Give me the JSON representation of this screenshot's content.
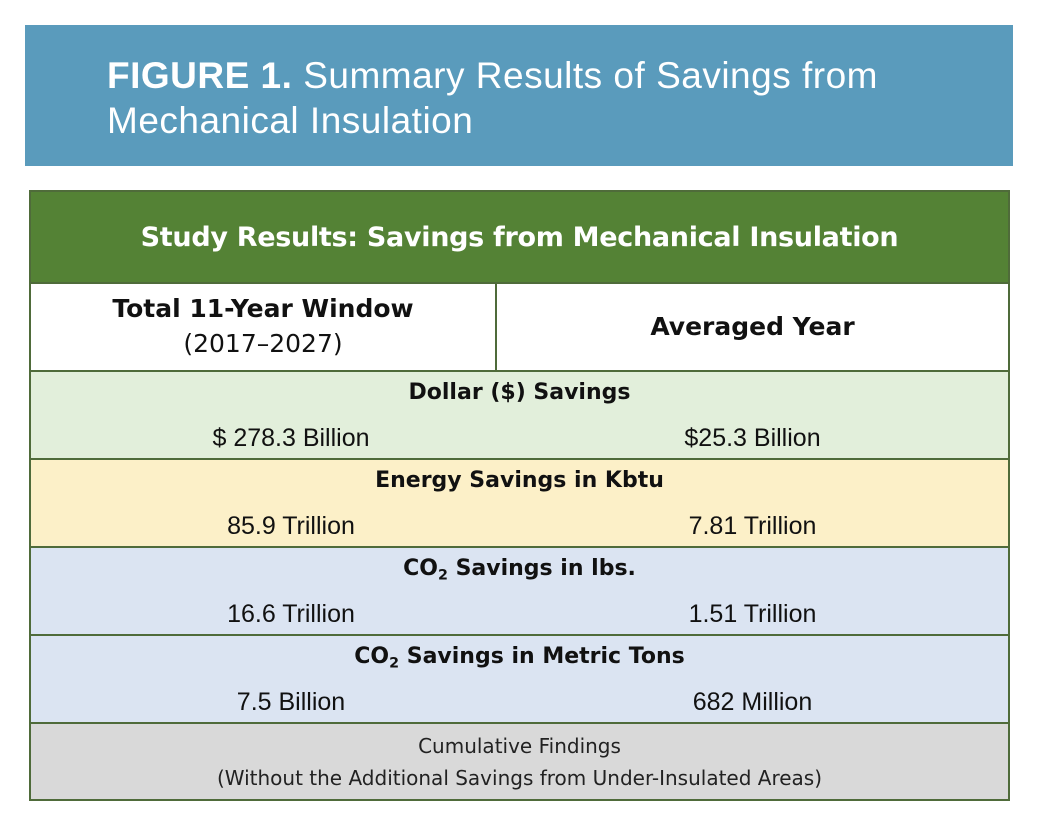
{
  "figure": {
    "label": "FIGURE 1.",
    "title": "Summary Results of Savings from Mechanical Insulation"
  },
  "table": {
    "title": "Study Results: Savings from Mechanical Insulation",
    "header": {
      "left_main": "Total 11-Year Window",
      "left_sub": "(2017–2027)",
      "right": "Averaged Year"
    },
    "rows": [
      {
        "metric": "Dollar ($) Savings",
        "total": "$ 278.3 Billion",
        "averaged": "$25.3 Billion"
      },
      {
        "metric": "Energy Savings in Kbtu",
        "total": "85.9 Trillion",
        "averaged": "7.81 Trillion"
      },
      {
        "metric_prefix": "CO",
        "metric_sub": "2",
        "metric_suffix": " Savings in lbs.",
        "total": "16.6 Trillion",
        "averaged": "1.51 Trillion"
      },
      {
        "metric_prefix": "CO",
        "metric_sub": "2",
        "metric_suffix": " Savings in Metric Tons",
        "total": "7.5 Billion",
        "averaged": "682 Million"
      }
    ],
    "footer": {
      "line1": "Cumulative Findings",
      "line2": "(Without the Additional Savings from Under-Insulated Areas)"
    }
  },
  "colors": {
    "banner": "#5a9bbc",
    "title_row": "#548235",
    "dollar_row": "#e2efdb",
    "energy_row": "#fcf0c8",
    "co2_rows": "#dbe4f2",
    "footer_row": "#d9d9d9"
  }
}
